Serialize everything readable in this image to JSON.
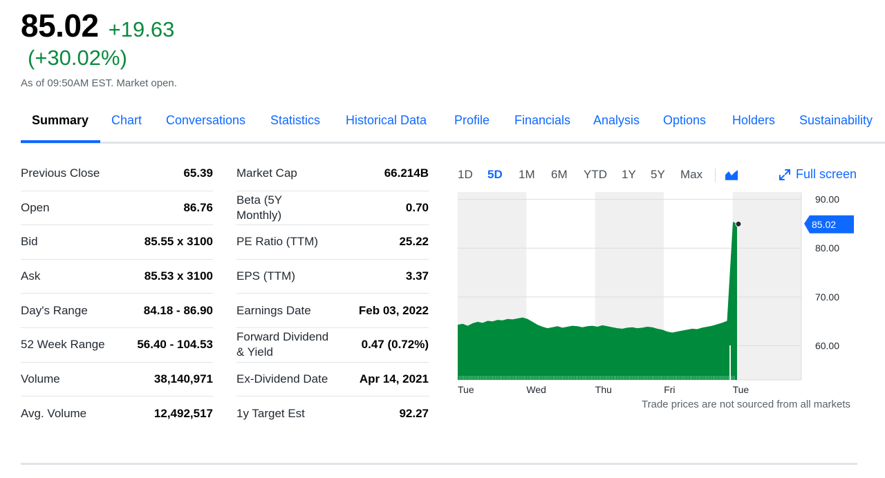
{
  "quote": {
    "price": "85.02",
    "change": "+19.63",
    "change_pct": "(+30.02%)",
    "as_of": "As of 09:50AM EST. Market open."
  },
  "tabs": [
    {
      "label": "Summary",
      "active": true
    },
    {
      "label": "Chart"
    },
    {
      "label": "Conversations"
    },
    {
      "label": "Statistics"
    },
    {
      "label": "Historical Data"
    },
    {
      "label": "Profile"
    },
    {
      "label": "Financials"
    },
    {
      "label": "Analysis"
    },
    {
      "label": "Options"
    },
    {
      "label": "Holders"
    },
    {
      "label": "Sustainability"
    }
  ],
  "stats_left": [
    {
      "label": "Previous Close",
      "value": "65.39"
    },
    {
      "label": "Open",
      "value": "86.76"
    },
    {
      "label": "Bid",
      "value": "85.55 x 3100"
    },
    {
      "label": "Ask",
      "value": "85.53 x 3100"
    },
    {
      "label": "Day's Range",
      "value": "84.18 - 86.90"
    },
    {
      "label": "52 Week Range",
      "value": "56.40 - 104.53"
    },
    {
      "label": "Volume",
      "value": "38,140,971"
    },
    {
      "label": "Avg. Volume",
      "value": "12,492,517"
    }
  ],
  "stats_right": [
    {
      "label": "Market Cap",
      "value": "66.214B"
    },
    {
      "label": "Beta (5Y Monthly)",
      "value": "0.70"
    },
    {
      "label": "PE Ratio (TTM)",
      "value": "25.22"
    },
    {
      "label": "EPS (TTM)",
      "value": "3.37"
    },
    {
      "label": "Earnings Date",
      "value": "Feb 03, 2022"
    },
    {
      "label": "Forward Dividend & Yield",
      "value": "0.47 (0.72%)"
    },
    {
      "label": "Ex-Dividend Date",
      "value": "Apr 14, 2021"
    },
    {
      "label": "1y Target Est",
      "value": "92.27"
    }
  ],
  "chart_controls": {
    "ranges": [
      "1D",
      "5D",
      "1M",
      "6M",
      "YTD",
      "1Y",
      "5Y",
      "Max"
    ],
    "active_range": "5D",
    "chart_type_icon": "mountain-chart-icon",
    "fullscreen_label": "Full screen",
    "fullscreen_icon": "expand-arrows-icon"
  },
  "disclaimer": "Trade prices are not sourced from all markets",
  "colors": {
    "accent": "#0f69ff",
    "positive": "#0b8a3f",
    "chart_fill": "#008a3c",
    "price_badge": "#0f69ff"
  },
  "chart_data": {
    "type": "area",
    "x_labels": [
      "Tue",
      "Wed",
      "Thu",
      "Fri",
      "Tue"
    ],
    "y_ticks": [
      90,
      80,
      70,
      60
    ],
    "y_tick_labels": [
      "90.00",
      "80.00",
      "70.00",
      "60.00"
    ],
    "ylim": [
      53,
      91.5
    ],
    "current_price_label": "85.02",
    "current_price": 85.02,
    "series": [
      {
        "values": [
          64.3,
          64.5,
          64.1,
          64.6,
          64.9,
          64.7,
          65.1,
          65.0,
          65.3,
          65.2,
          65.5,
          65.4,
          65.6,
          65.8,
          65.5,
          64.9,
          64.3,
          63.9,
          63.6,
          63.8,
          64.0,
          63.7,
          63.9,
          64.1,
          64.0,
          63.8,
          64.0,
          64.1,
          63.9,
          64.2,
          64.0,
          63.8,
          63.6,
          63.5,
          63.7,
          63.8,
          63.6,
          63.7,
          63.9,
          63.8,
          63.5,
          63.3,
          62.9,
          62.7,
          62.9,
          63.1,
          63.3,
          63.5,
          63.4,
          63.7,
          63.9,
          64.1,
          64.4,
          64.7,
          65.1,
          85.4,
          85.02
        ],
        "bar_volume": true
      }
    ],
    "day_segments": 5,
    "legend": "none",
    "grid": true
  }
}
